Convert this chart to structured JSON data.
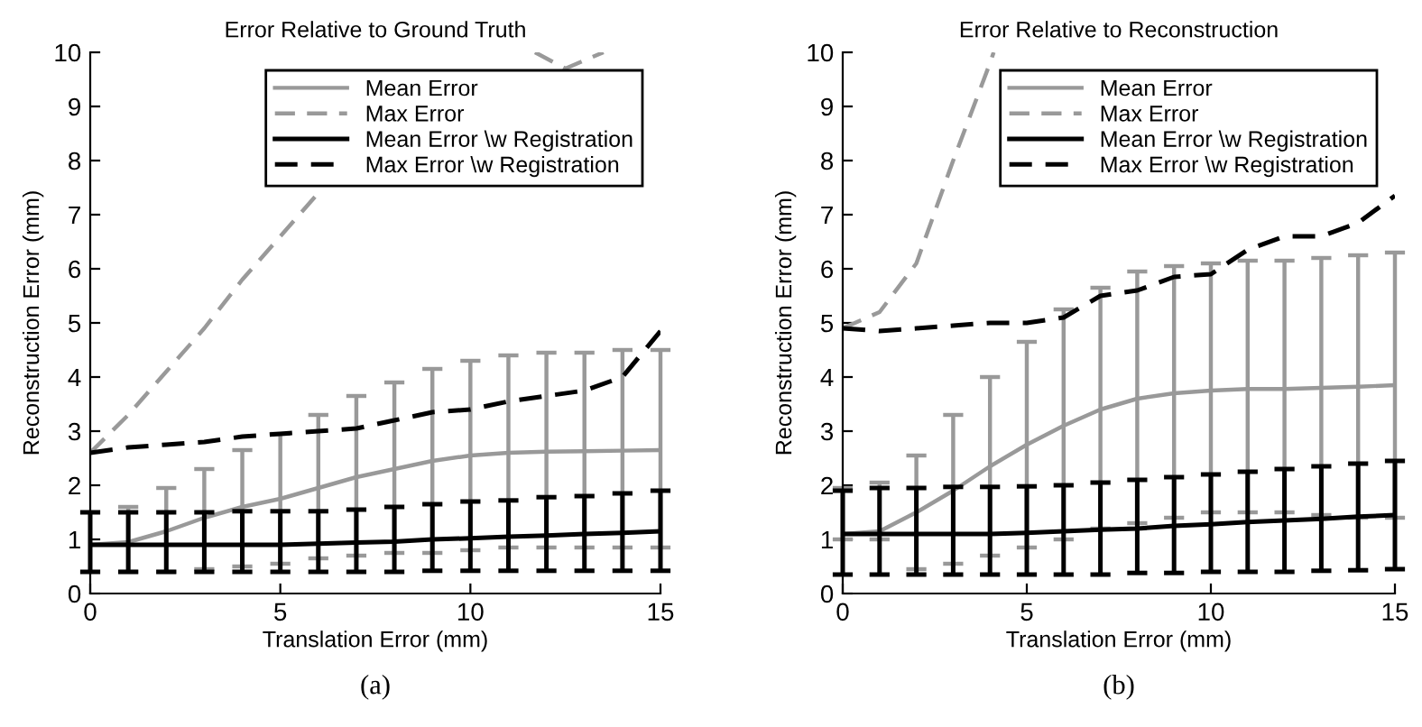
{
  "chart_data": [
    {
      "type": "line",
      "title": "Error Relative to Ground Truth",
      "xlabel": "Translation Error (mm)",
      "ylabel": "Reconstruction Error (mm)",
      "annotations": [
        "(a)"
      ],
      "x": [
        0,
        1,
        2,
        3,
        4,
        5,
        6,
        7,
        8,
        9,
        10,
        11,
        12,
        13,
        14,
        15
      ],
      "xlim": [
        0,
        15
      ],
      "xticks": [
        0,
        5,
        10,
        15
      ],
      "ylim": [
        0,
        10
      ],
      "yticks": [
        0,
        1,
        2,
        3,
        4,
        5,
        6,
        7,
        8,
        9,
        10
      ],
      "grid": false,
      "legend": "top right",
      "series": [
        {
          "name": "Mean Error",
          "color": "#999999",
          "line_style": "solid",
          "values": [
            0.9,
            0.95,
            1.15,
            1.4,
            1.6,
            1.75,
            1.95,
            2.15,
            2.3,
            2.45,
            2.55,
            2.6,
            2.62,
            2.63,
            2.64,
            2.65
          ],
          "errors": [
            null,
            [
              0.4,
              1.6
            ],
            [
              0.4,
              1.95
            ],
            [
              0.45,
              2.3
            ],
            [
              0.5,
              2.65
            ],
            [
              0.55,
              2.95
            ],
            [
              0.65,
              3.3
            ],
            [
              0.7,
              3.65
            ],
            [
              0.75,
              3.9
            ],
            [
              0.75,
              4.15
            ],
            [
              0.8,
              4.3
            ],
            [
              0.85,
              4.4
            ],
            [
              0.85,
              4.45
            ],
            [
              0.85,
              4.45
            ],
            [
              0.85,
              4.5
            ],
            [
              0.85,
              4.5
            ]
          ]
        },
        {
          "name": "Max Error",
          "color": "#999999",
          "line_style": "dashed",
          "x": [
            0,
            1,
            2,
            3,
            4,
            5,
            6,
            7,
            11.7,
            12.5,
            13.5
          ],
          "values": [
            2.6,
            3.3,
            4.1,
            4.9,
            5.8,
            6.6,
            7.4,
            null,
            10,
            9.7,
            10
          ]
        },
        {
          "name": "Mean Error \\w Registration",
          "color": "#000000",
          "line_style": "solid",
          "values": [
            0.9,
            0.9,
            0.9,
            0.9,
            0.9,
            0.9,
            0.92,
            0.94,
            0.96,
            1.0,
            1.02,
            1.05,
            1.07,
            1.1,
            1.12,
            1.15
          ],
          "errors": [
            [
              0.4,
              1.5
            ],
            [
              0.4,
              1.5
            ],
            [
              0.4,
              1.5
            ],
            [
              0.4,
              1.5
            ],
            [
              0.4,
              1.52
            ],
            [
              0.4,
              1.52
            ],
            [
              0.4,
              1.52
            ],
            [
              0.4,
              1.55
            ],
            [
              0.4,
              1.6
            ],
            [
              0.42,
              1.65
            ],
            [
              0.42,
              1.7
            ],
            [
              0.42,
              1.72
            ],
            [
              0.42,
              1.78
            ],
            [
              0.42,
              1.8
            ],
            [
              0.42,
              1.85
            ],
            [
              0.42,
              1.9
            ]
          ]
        },
        {
          "name": "Max Error \\w Registration",
          "color": "#000000",
          "line_style": "dashed",
          "values": [
            2.6,
            2.7,
            2.75,
            2.8,
            2.9,
            2.95,
            3.0,
            3.05,
            3.2,
            3.35,
            3.4,
            3.55,
            3.65,
            3.75,
            4.0,
            4.85
          ]
        }
      ]
    },
    {
      "type": "line",
      "title": "Error Relative to Reconstruction",
      "xlabel": "Translation Error (mm)",
      "ylabel": "Reconstruction Error (mm)",
      "annotations": [
        "(b)"
      ],
      "x": [
        0,
        1,
        2,
        3,
        4,
        5,
        6,
        7,
        8,
        9,
        10,
        11,
        12,
        13,
        14,
        15
      ],
      "xlim": [
        0,
        15
      ],
      "xticks": [
        0,
        5,
        10,
        15
      ],
      "ylim": [
        0,
        10
      ],
      "yticks": [
        0,
        1,
        2,
        3,
        4,
        5,
        6,
        7,
        8,
        9,
        10
      ],
      "grid": false,
      "legend": "top right",
      "series": [
        {
          "name": "Mean Error",
          "color": "#999999",
          "line_style": "solid",
          "values": [
            1.1,
            1.15,
            1.5,
            1.9,
            2.35,
            2.75,
            3.1,
            3.4,
            3.6,
            3.7,
            3.75,
            3.78,
            3.78,
            3.8,
            3.82,
            3.85
          ],
          "errors": [
            [
              1.0,
              1.95
            ],
            [
              1.0,
              2.05
            ],
            [
              0.45,
              2.55
            ],
            [
              0.55,
              3.3
            ],
            [
              0.7,
              4.0
            ],
            [
              0.85,
              4.65
            ],
            [
              1.0,
              5.25
            ],
            [
              1.2,
              5.65
            ],
            [
              1.3,
              5.95
            ],
            [
              1.4,
              6.05
            ],
            [
              1.5,
              6.1
            ],
            [
              1.5,
              6.15
            ],
            [
              1.5,
              6.15
            ],
            [
              1.45,
              6.2
            ],
            [
              1.4,
              6.25
            ],
            [
              1.4,
              6.3
            ]
          ]
        },
        {
          "name": "Max Error",
          "color": "#999999",
          "line_style": "dashed",
          "x": [
            0,
            1,
            2,
            3,
            4,
            4.1
          ],
          "values": [
            4.9,
            5.2,
            6.1,
            8.0,
            9.8,
            10
          ]
        },
        {
          "name": "Mean Error \\w Registration",
          "color": "#000000",
          "line_style": "solid",
          "values": [
            1.1,
            1.1,
            1.1,
            1.1,
            1.1,
            1.12,
            1.15,
            1.18,
            1.2,
            1.25,
            1.28,
            1.32,
            1.35,
            1.38,
            1.42,
            1.45
          ],
          "errors": [
            [
              0.35,
              1.9
            ],
            [
              0.35,
              1.95
            ],
            [
              0.35,
              1.95
            ],
            [
              0.35,
              1.97
            ],
            [
              0.35,
              1.97
            ],
            [
              0.35,
              1.98
            ],
            [
              0.35,
              2.0
            ],
            [
              0.35,
              2.05
            ],
            [
              0.38,
              2.1
            ],
            [
              0.38,
              2.15
            ],
            [
              0.4,
              2.2
            ],
            [
              0.4,
              2.25
            ],
            [
              0.4,
              2.3
            ],
            [
              0.42,
              2.35
            ],
            [
              0.43,
              2.4
            ],
            [
              0.45,
              2.45
            ]
          ]
        },
        {
          "name": "Max Error \\w Registration",
          "color": "#000000",
          "line_style": "dashed",
          "values": [
            4.9,
            4.85,
            4.9,
            4.95,
            5.0,
            5.0,
            5.1,
            5.5,
            5.6,
            5.85,
            5.9,
            6.35,
            6.6,
            6.6,
            6.85,
            7.35
          ]
        }
      ]
    }
  ]
}
